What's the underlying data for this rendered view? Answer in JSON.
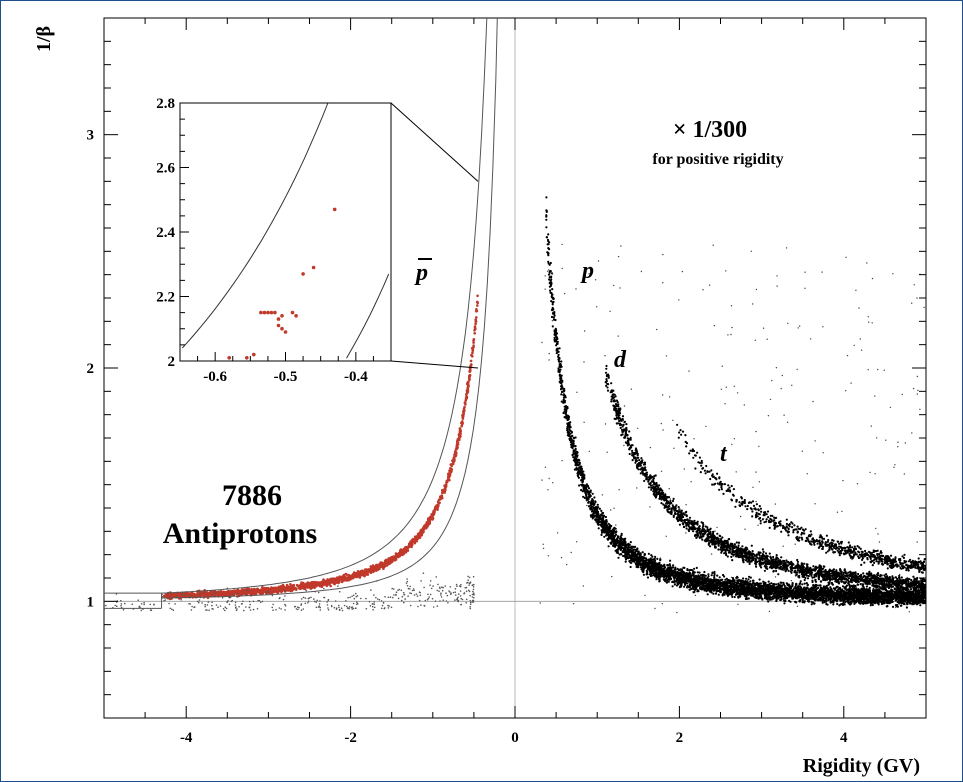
{
  "chart_data": {
    "type": "scatter",
    "xlabel": "Rigidity (GV)",
    "ylabel": "1/β",
    "xlim": [
      -5,
      5
    ],
    "ylim": [
      0.5,
      3.5
    ],
    "xticks": [
      "-4",
      "-2",
      "0",
      "2",
      "4"
    ],
    "yticks": [
      "1",
      "2",
      "3"
    ],
    "annotations": {
      "count": "7886",
      "count_label": "Antiprotons",
      "scale": "× 1/300",
      "scale_note": "for positive rigidity",
      "pbar": "p",
      "p": "p",
      "d": "d",
      "t": "t"
    },
    "bands": [
      {
        "name": "p",
        "mass_gev": 0.938,
        "rigidity_range": [
          0.38,
          5
        ]
      },
      {
        "name": "d",
        "mass_gev": 1.876,
        "rigidity_range": [
          1.1,
          5
        ]
      },
      {
        "name": "t",
        "mass_gev": 2.809,
        "rigidity_range": [
          1.9,
          5
        ]
      }
    ],
    "antiproton_band": {
      "mass_gev": 0.938,
      "rigidity_range": [
        -4.3,
        -0.45
      ]
    },
    "selection_window": {
      "outer_mass_gev": 1.15,
      "inner_mass_gev": 0.72
    },
    "inset": {
      "xlim": [
        -0.65,
        -0.35
      ],
      "ylim": [
        2.0,
        2.8
      ],
      "xticks": [
        "-0.6",
        "-0.5",
        "-0.4"
      ],
      "yticks": [
        "2",
        "2.2",
        "2.4",
        "2.6",
        "2.8"
      ],
      "points": [
        [
          -0.43,
          2.47
        ],
        [
          -0.46,
          2.29
        ],
        [
          -0.475,
          2.27
        ],
        [
          -0.49,
          2.15
        ],
        [
          -0.485,
          2.14
        ],
        [
          -0.505,
          2.14
        ],
        [
          -0.51,
          2.13
        ],
        [
          -0.515,
          2.15
        ],
        [
          -0.52,
          2.15
        ],
        [
          -0.525,
          2.15
        ],
        [
          -0.53,
          2.15
        ],
        [
          -0.535,
          2.15
        ],
        [
          -0.505,
          2.1
        ],
        [
          -0.51,
          2.11
        ],
        [
          -0.5,
          2.09
        ],
        [
          -0.545,
          2.02
        ],
        [
          -0.555,
          2.01
        ],
        [
          -0.58,
          2.01
        ]
      ]
    },
    "colors": {
      "antiproton": "#c0392b",
      "positive": "#000000",
      "window": "#555555"
    }
  }
}
